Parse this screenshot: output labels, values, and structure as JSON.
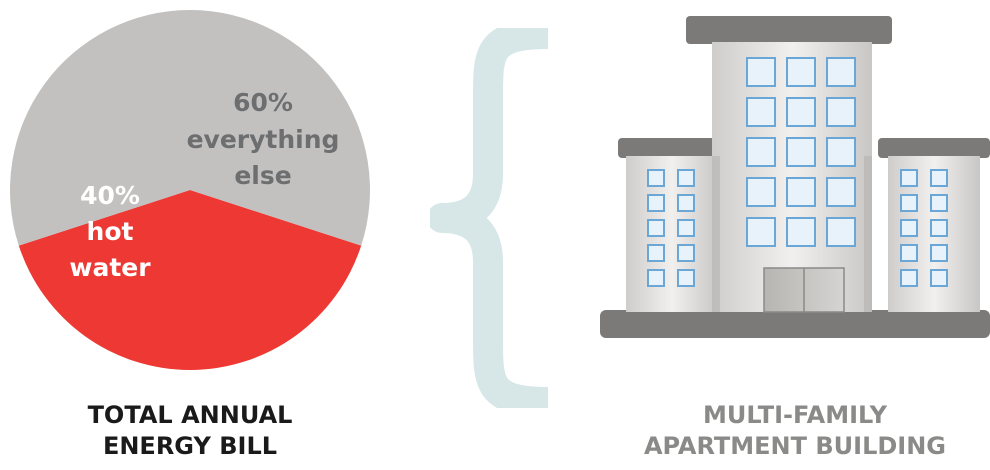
{
  "chart_data": {
    "type": "pie",
    "slices": [
      {
        "value": 40,
        "label_pct": "40%",
        "label_lines": [
          "hot",
          "water"
        ],
        "color": "#ed3833"
      },
      {
        "value": 60,
        "label_pct": "60%",
        "label_lines": [
          "everything",
          "else"
        ],
        "color": "#c2c1c0"
      }
    ],
    "hot_label_color": "#ffffff",
    "else_label_color": "#6d6e70"
  },
  "captions": {
    "left": [
      "TOTAL ANNUAL",
      "ENERGY BILL"
    ],
    "left_color": "#1a1a1a",
    "right": [
      "MULTI-FAMILY",
      "APARTMENT BUILDING"
    ],
    "right_color": "#8a8a88"
  },
  "colors": {
    "brace": "#d7e7e8",
    "building_frame": "#7c7a78",
    "building_wall": "#dad9d7",
    "window_fill": "#e7f2fb",
    "window_border": "#6aa6d6"
  },
  "icons": [
    "curly-brace-icon",
    "apartment-building-icon"
  ]
}
